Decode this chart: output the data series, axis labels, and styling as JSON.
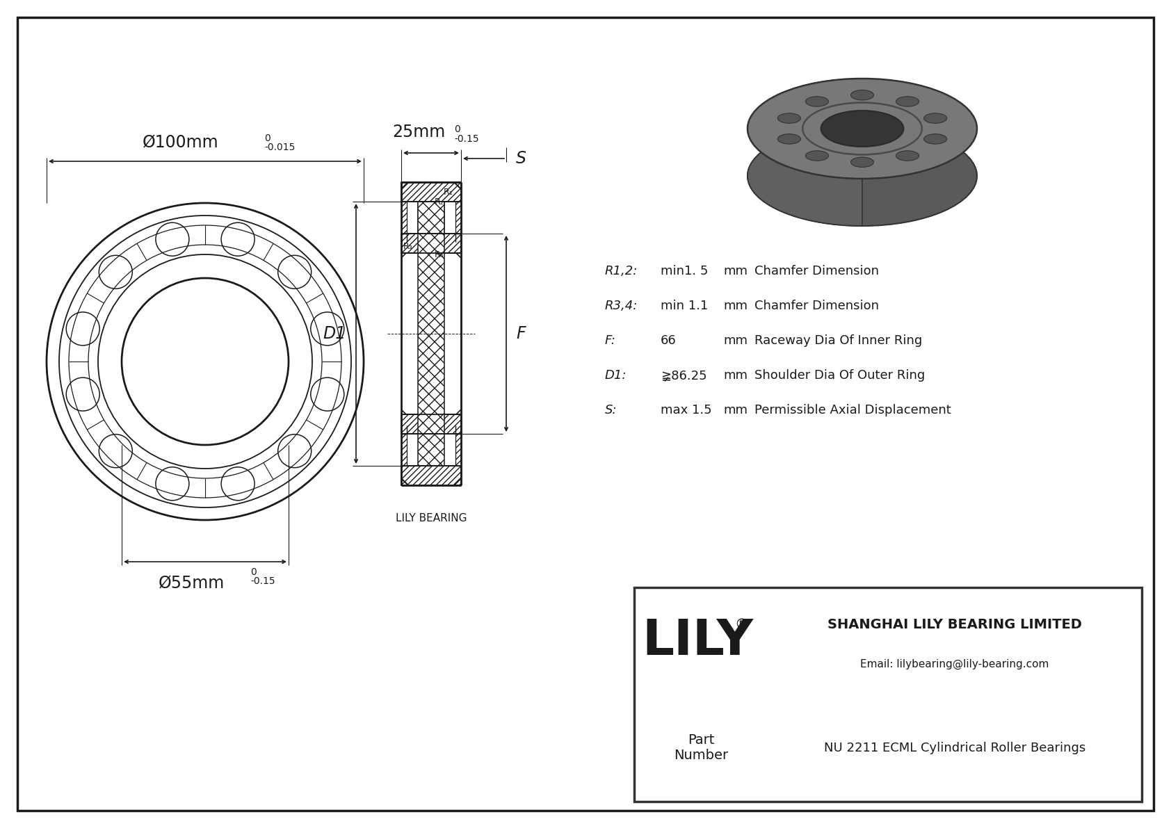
{
  "bg_color": "#ffffff",
  "line_color": "#1a1a1a",
  "text_color": "#1a1a1a",
  "outer_diameter_label": "Ø100mm",
  "outer_diameter_tol_upper": "0",
  "outer_diameter_tol_lower": "-0.015",
  "inner_diameter_label": "Ø55mm",
  "inner_diameter_tol_upper": "0",
  "inner_diameter_tol_lower": "-0.15",
  "width_label": "25mm",
  "width_tol_upper": "0",
  "width_tol_lower": "-0.15",
  "specs": [
    {
      "param": "R1,2:",
      "value": "min1. 5",
      "unit": "mm",
      "desc": "Chamfer Dimension"
    },
    {
      "param": "R3,4:",
      "value": "min 1.1",
      "unit": "mm",
      "desc": "Chamfer Dimension"
    },
    {
      "param": "F:",
      "value": "66",
      "unit": "mm",
      "desc": "Raceway Dia Of Inner Ring"
    },
    {
      "param": "D1:",
      "value": "≩86.25",
      "unit": "mm",
      "desc": "Shoulder Dia Of Outer Ring"
    },
    {
      "param": "S:",
      "value": "max 1.5",
      "unit": "mm",
      "desc": "Permissible Axial Displacement"
    }
  ],
  "company_name": "SHANGHAI LILY BEARING LIMITED",
  "company_email": "Email: lilybearing@lily-bearing.com",
  "part_label": "Part\nNumber",
  "part_number": "NU 2211 ECML Cylindrical Roller Bearings",
  "brand": "LILY",
  "brand_reg": "®",
  "lily_bearing_label": "LILY BEARING",
  "dim_S_label": "S",
  "dim_D1_label": "D1",
  "dim_F_label": "F",
  "dim_R2_label": "R₂",
  "dim_R1_label": "R₁",
  "dim_R3_label": "R₃",
  "dim_R4_label": "R₄"
}
